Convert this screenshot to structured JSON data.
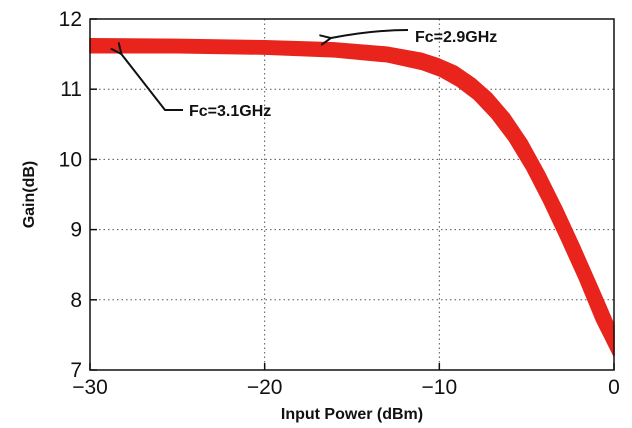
{
  "chart_data": {
    "type": "line",
    "xlabel": "Input Power (dBm)",
    "ylabel": "Gain(dB)",
    "xlim": [
      -30,
      0
    ],
    "ylim": [
      7,
      12
    ],
    "xticks": [
      -30,
      -20,
      -10,
      0
    ],
    "yticks": [
      7,
      8,
      9,
      10,
      11,
      12
    ],
    "xtick_labels": [
      "−30",
      "−20",
      "−10",
      "0"
    ],
    "ytick_labels": [
      "7",
      "8",
      "9",
      "10",
      "11",
      "12"
    ],
    "grid": true,
    "legend": "none",
    "series": [
      {
        "color": "#e8241c",
        "x": [
          -30,
          -25,
          -20,
          -16,
          -13,
          -11,
          -10,
          -9,
          -8,
          -7,
          -6,
          -5,
          -4,
          -3,
          -2,
          -1,
          -0.5,
          0
        ],
        "y_upper": [
          11.72,
          11.71,
          11.69,
          11.66,
          11.6,
          11.51,
          11.43,
          11.32,
          11.15,
          10.93,
          10.64,
          10.27,
          9.82,
          9.32,
          8.78,
          8.22,
          7.93,
          7.64
        ],
        "y_lower": [
          11.52,
          11.52,
          11.5,
          11.46,
          11.39,
          11.28,
          11.19,
          11.05,
          10.86,
          10.6,
          10.27,
          9.86,
          9.38,
          8.85,
          8.3,
          7.7,
          7.45,
          7.2
        ]
      }
    ],
    "annotations": [
      {
        "text": "Fc=2.9GHz",
        "arrow_to": [
          -16.2,
          11.73
        ]
      },
      {
        "text": "Fc=3.1GHz",
        "arrow_to": [
          -28.2,
          11.5
        ]
      }
    ]
  }
}
